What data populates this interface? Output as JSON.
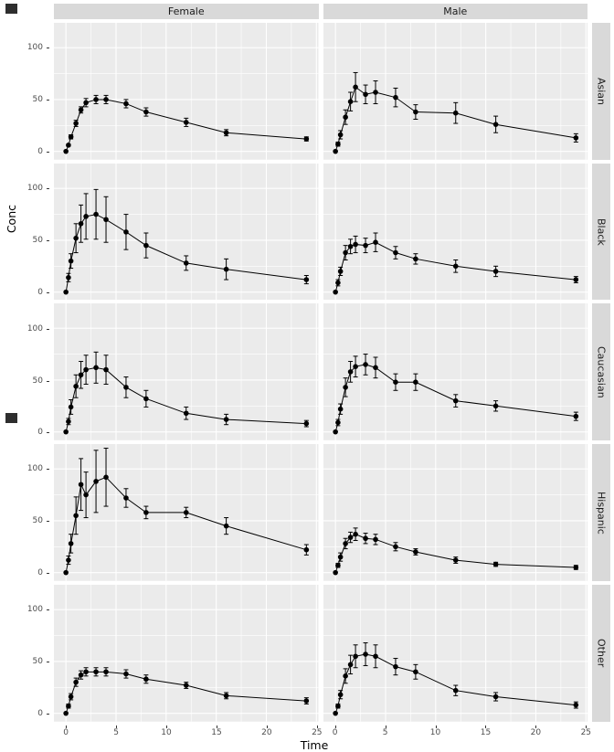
{
  "chart_data": {
    "type": "line",
    "title": "",
    "xlabel": "Time",
    "ylabel": "Conc",
    "legend": "none",
    "grid": "on",
    "col_facets": [
      "Female",
      "Male"
    ],
    "row_facets": [
      "Asian",
      "Black",
      "Caucasian",
      "Hispanic",
      "Other"
    ],
    "xlim": [
      -1.2,
      25.2
    ],
    "ylim": [
      -8,
      124
    ],
    "x_ticks": [
      0,
      5,
      10,
      15,
      20,
      25
    ],
    "y_ticks": [
      0,
      50,
      100
    ],
    "x_minor": [
      2.5,
      7.5,
      12.5,
      17.5,
      22.5
    ],
    "y_minor": [
      25,
      75
    ],
    "x": [
      0,
      0.25,
      0.5,
      1,
      1.5,
      2,
      3,
      4,
      6,
      8,
      12,
      16,
      24
    ],
    "colors": {
      "point": "#000000",
      "line": "#000000",
      "panel_bg": "#ebebeb",
      "strip_bg": "#d9d9d9",
      "gridline": "#ffffff",
      "tick_text": "#4d4d4d"
    },
    "panels": [
      {
        "col": "Female",
        "row": "Asian",
        "mean": [
          0,
          6,
          14,
          27,
          40,
          47,
          50,
          50,
          46,
          38,
          28,
          18,
          12
        ],
        "err": [
          0,
          1,
          2,
          3,
          3,
          4,
          4,
          4,
          4,
          4,
          4,
          3,
          2
        ]
      },
      {
        "col": "Male",
        "row": "Asian",
        "mean": [
          0,
          7,
          16,
          33,
          48,
          62,
          55,
          57,
          52,
          38,
          37,
          26,
          13
        ],
        "err": [
          0,
          2,
          4,
          7,
          9,
          14,
          9,
          11,
          9,
          7,
          10,
          8,
          4
        ]
      },
      {
        "col": "Female",
        "row": "Black",
        "mean": [
          0,
          14,
          30,
          52,
          66,
          73,
          75,
          70,
          58,
          45,
          28,
          22,
          12
        ],
        "err": [
          0,
          4,
          7,
          14,
          18,
          22,
          24,
          22,
          17,
          12,
          7,
          10,
          4
        ]
      },
      {
        "col": "Male",
        "row": "Black",
        "mean": [
          0,
          9,
          20,
          38,
          44,
          46,
          45,
          48,
          38,
          32,
          25,
          20,
          12
        ],
        "err": [
          0,
          3,
          4,
          7,
          7,
          8,
          7,
          9,
          6,
          5,
          6,
          5,
          3
        ]
      },
      {
        "col": "Female",
        "row": "Caucasian",
        "mean": [
          0,
          10,
          24,
          44,
          55,
          60,
          62,
          60,
          43,
          32,
          18,
          12,
          8
        ],
        "err": [
          0,
          3,
          7,
          11,
          13,
          14,
          15,
          14,
          10,
          8,
          6,
          5,
          3
        ]
      },
      {
        "col": "Male",
        "row": "Caucasian",
        "mean": [
          0,
          9,
          22,
          43,
          58,
          63,
          65,
          62,
          48,
          48,
          30,
          25,
          15
        ],
        "err": [
          0,
          3,
          5,
          9,
          10,
          10,
          10,
          10,
          8,
          8,
          6,
          5,
          4
        ]
      },
      {
        "col": "Female",
        "row": "Hispanic",
        "mean": [
          0,
          12,
          28,
          55,
          85,
          75,
          88,
          92,
          72,
          58,
          58,
          45,
          22
        ],
        "err": [
          0,
          4,
          9,
          18,
          25,
          22,
          30,
          28,
          9,
          6,
          5,
          8,
          5
        ]
      },
      {
        "col": "Male",
        "row": "Hispanic",
        "mean": [
          0,
          7,
          15,
          28,
          34,
          37,
          33,
          32,
          25,
          20,
          12,
          8,
          5
        ],
        "err": [
          0,
          2,
          4,
          5,
          5,
          6,
          5,
          5,
          4,
          3,
          3,
          2,
          2
        ]
      },
      {
        "col": "Female",
        "row": "Other",
        "mean": [
          0,
          7,
          16,
          30,
          37,
          40,
          40,
          40,
          38,
          33,
          27,
          17,
          12
        ],
        "err": [
          0,
          2,
          3,
          4,
          4,
          4,
          4,
          4,
          4,
          4,
          3,
          3,
          3
        ]
      },
      {
        "col": "Male",
        "row": "Other",
        "mean": [
          0,
          7,
          18,
          36,
          47,
          55,
          57,
          55,
          45,
          40,
          22,
          16,
          8
        ],
        "err": [
          0,
          2,
          4,
          7,
          9,
          11,
          11,
          11,
          8,
          7,
          5,
          4,
          3
        ]
      }
    ]
  }
}
